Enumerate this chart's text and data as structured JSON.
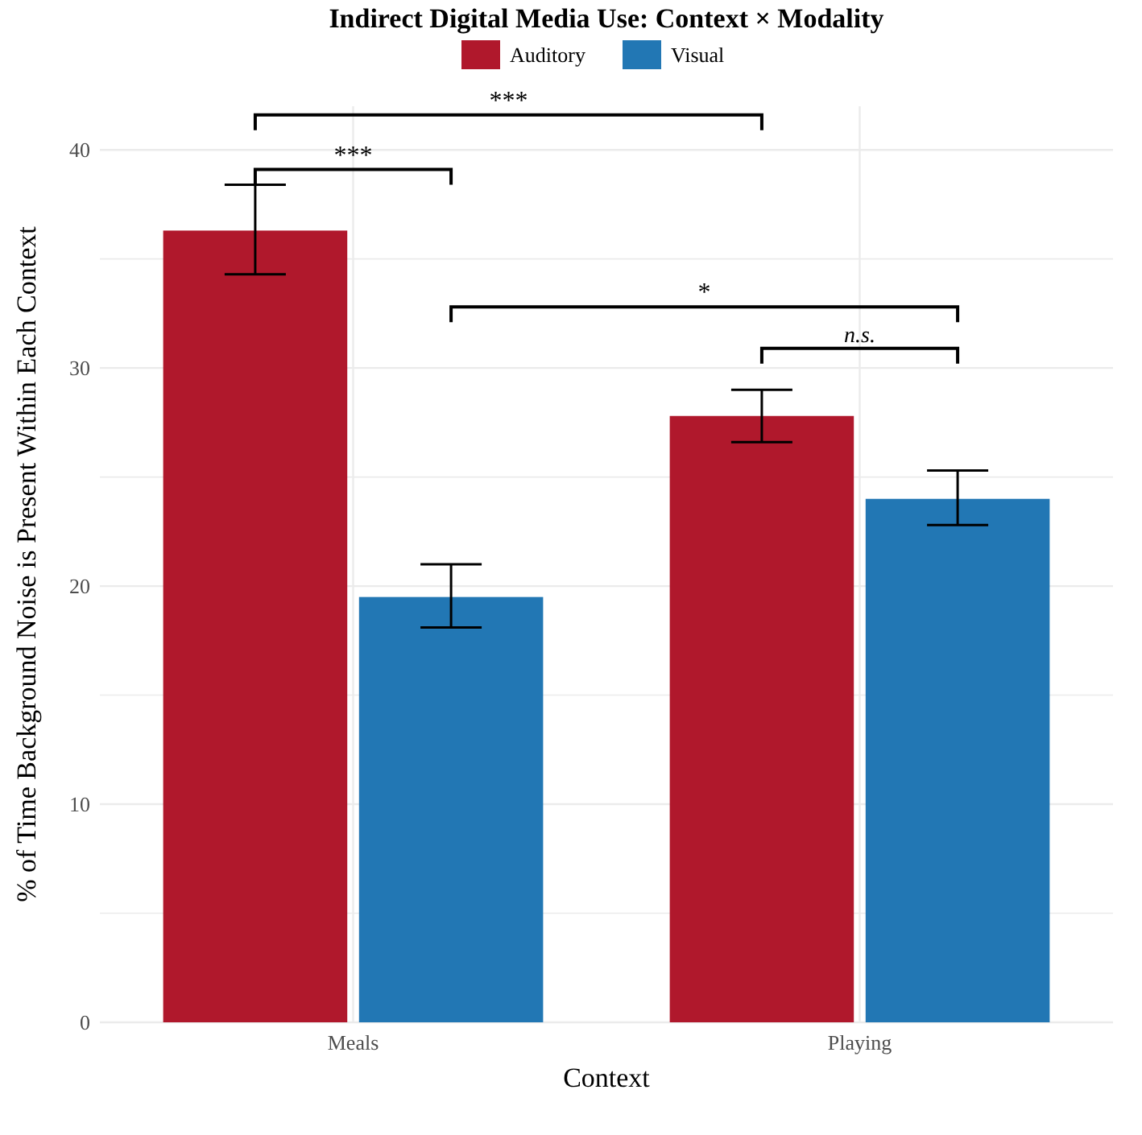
{
  "chart_data": {
    "type": "bar",
    "title": "Indirect Digital Media Use: Context × Modality",
    "xlabel": "Context",
    "ylabel": "% of Time Background Noise is Present Within Each Context",
    "categories": [
      "Meals",
      "Playing"
    ],
    "series": [
      {
        "name": "Auditory",
        "color": "#b0182c",
        "values": [
          36.3,
          27.8
        ],
        "errors": [
          [
            34.3,
            38.4
          ],
          [
            26.6,
            29.0
          ]
        ]
      },
      {
        "name": "Visual",
        "color": "#2277b4",
        "values": [
          19.5,
          24.0
        ],
        "errors": [
          [
            18.1,
            21.0
          ],
          [
            22.8,
            25.3
          ]
        ]
      }
    ],
    "ylim": [
      0,
      42
    ],
    "yticks": [
      0,
      {
        "value": 5,
        "label": null
      },
      10,
      {
        "value": 15,
        "label": null
      },
      20,
      {
        "value": 25,
        "label": null
      },
      30,
      {
        "value": 35,
        "label": null
      },
      40
    ],
    "grid": true,
    "legend": "top",
    "annotations": [
      "***",
      "***",
      "*",
      "n.s."
    ]
  }
}
